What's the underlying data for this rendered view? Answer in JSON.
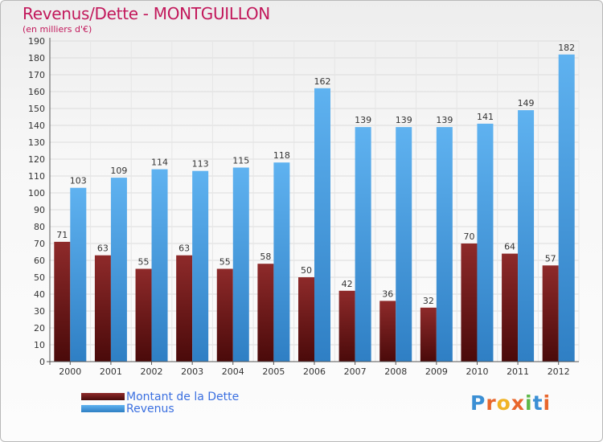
{
  "header": {
    "title": "Revenus/Dette - MONTGUILLON",
    "subtitle": "(en milliers d'€)"
  },
  "legend": {
    "items": [
      {
        "label": "Montant de la Dette",
        "color": "#7a1f1f"
      },
      {
        "label": "Revenus",
        "color": "#4da6ea"
      }
    ]
  },
  "logo": {
    "text": "Proxiti",
    "colors": [
      "#3b8fd4",
      "#e8662c",
      "#f0b324",
      "#e8662c",
      "#5db848",
      "#3b8fd4",
      "#e8662c"
    ]
  },
  "chart_data": {
    "type": "bar",
    "title": "Revenus/Dette - MONTGUILLON",
    "subtitle": "(en milliers d'€)",
    "categories": [
      "2000",
      "2001",
      "2002",
      "2003",
      "2004",
      "2005",
      "2006",
      "2007",
      "2008",
      "2009",
      "2010",
      "2011",
      "2012"
    ],
    "series": [
      {
        "name": "Montant de la Dette",
        "color": "#7a1f1f",
        "values": [
          71,
          63,
          55,
          63,
          55,
          58,
          50,
          42,
          36,
          32,
          70,
          64,
          57
        ]
      },
      {
        "name": "Revenus",
        "color": "#4da6ea",
        "values": [
          103,
          109,
          114,
          113,
          115,
          118,
          162,
          139,
          139,
          139,
          141,
          149,
          182
        ]
      }
    ],
    "ylim": [
      0,
      190
    ],
    "yticks": [
      0,
      10,
      20,
      30,
      40,
      50,
      60,
      70,
      80,
      90,
      100,
      110,
      120,
      130,
      140,
      150,
      160,
      170,
      180,
      190
    ],
    "grid": true,
    "legend_position": "bottom-left"
  }
}
